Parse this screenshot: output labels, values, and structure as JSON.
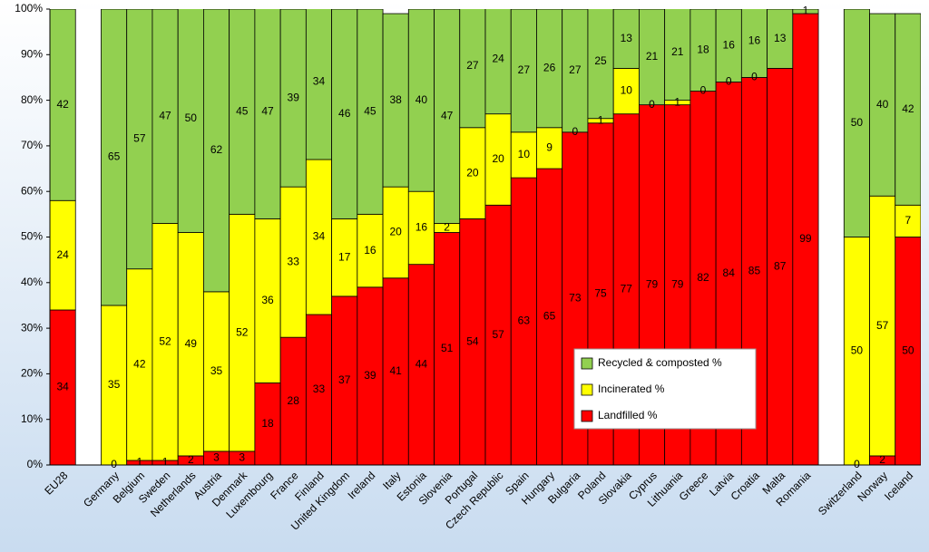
{
  "chart_data": {
    "type": "stacked_bar",
    "categories": [
      "EU28",
      null,
      "Germany",
      "Belgium",
      "Sweden",
      "Netherlands",
      "Austria",
      "Denmark",
      "Luxembourg",
      "France",
      "Finland",
      "United Kingdom",
      "Ireland",
      "Italy",
      "Estonia",
      "Slovenia",
      "Portugal",
      "Czech Republic",
      "Spain",
      "Hungary",
      "Bulgaria",
      "Poland",
      "Slovakia",
      "Cyprus",
      "Lithuania",
      "Greece",
      "Latvia",
      "Croatia",
      "Malta",
      "Romania",
      null,
      "Switzerland",
      "Norway",
      "Iceland"
    ],
    "series": [
      {
        "name": "Landfilled %",
        "color": "#ff0000",
        "values": [
          34,
          null,
          0,
          1,
          1,
          2,
          3,
          3,
          18,
          28,
          33,
          37,
          39,
          41,
          44,
          51,
          54,
          57,
          63,
          65,
          73,
          75,
          77,
          79,
          79,
          82,
          84,
          85,
          87,
          99,
          null,
          0,
          2,
          50
        ]
      },
      {
        "name": "Incinerated %",
        "color": "#ffff00",
        "values": [
          24,
          null,
          35,
          42,
          52,
          49,
          35,
          52,
          36,
          33,
          34,
          17,
          16,
          20,
          16,
          2,
          20,
          20,
          10,
          9,
          0,
          1,
          10,
          0,
          1,
          0,
          0,
          0,
          null,
          null,
          null,
          50,
          57,
          7
        ]
      },
      {
        "name": "Recycled & composted %",
        "color": "#92d050",
        "values": [
          42,
          null,
          65,
          57,
          47,
          50,
          62,
          45,
          47,
          39,
          34,
          46,
          45,
          38,
          40,
          47,
          27,
          24,
          27,
          26,
          27,
          25,
          13,
          21,
          21,
          18,
          16,
          16,
          13,
          1,
          null,
          50,
          40,
          42
        ]
      }
    ],
    "ylim": [
      0,
      100
    ],
    "yticks": [
      {
        "value": 0,
        "label": "0%"
      },
      {
        "value": 10,
        "label": "10%"
      },
      {
        "value": 20,
        "label": "20%"
      },
      {
        "value": 30,
        "label": "30%"
      },
      {
        "value": 40,
        "label": "40%"
      },
      {
        "value": 50,
        "label": "50%"
      },
      {
        "value": 60,
        "label": "60%"
      },
      {
        "value": 70,
        "label": "70%"
      },
      {
        "value": 80,
        "label": "80%"
      },
      {
        "value": 90,
        "label": "90%"
      },
      {
        "value": 100,
        "label": "100%"
      }
    ]
  }
}
